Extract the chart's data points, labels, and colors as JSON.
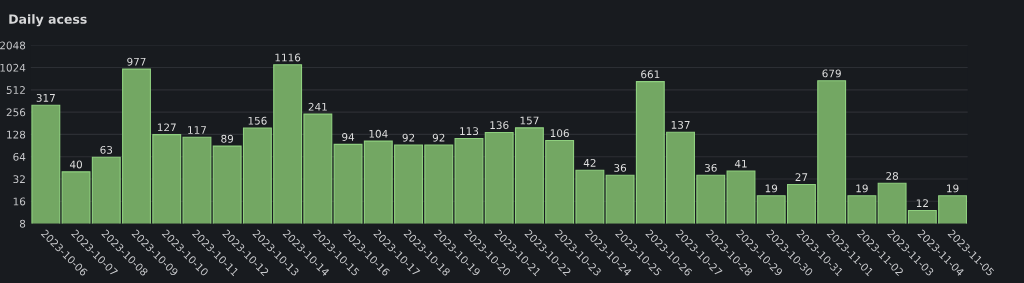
{
  "chart_data": {
    "type": "bar",
    "title": "Daily acess",
    "categories": [
      "2023-10-06",
      "2023-10-07",
      "2023-10-08",
      "2023-10-09",
      "2023-10-10",
      "2023-10-11",
      "2023-10-12",
      "2023-10-13",
      "2023-10-14",
      "2023-10-15",
      "2023-10-16",
      "2023-10-17",
      "2023-10-18",
      "2023-10-19",
      "2023-10-20",
      "2023-10-21",
      "2023-10-22",
      "2023-10-23",
      "2023-10-24",
      "2023-10-25",
      "2023-10-26",
      "2023-10-27",
      "2023-10-28",
      "2023-10-29",
      "2023-10-30",
      "2023-10-31",
      "2023-11-01",
      "2023-11-02",
      "2023-11-03",
      "2023-11-04",
      "2023-11-05"
    ],
    "values": [
      317,
      40,
      63,
      977,
      127,
      117,
      89,
      156,
      1116,
      241,
      94,
      104,
      92,
      92,
      113,
      136,
      157,
      106,
      42,
      36,
      661,
      137,
      36,
      41,
      19,
      27,
      679,
      19,
      28,
      12,
      19
    ],
    "color": "#73a763",
    "log": true,
    "ylim": [
      8,
      2048
    ],
    "yticks": [
      8,
      16,
      32,
      64,
      128,
      256,
      512,
      1024,
      2048
    ],
    "grid": "y",
    "data_labels": true
  }
}
